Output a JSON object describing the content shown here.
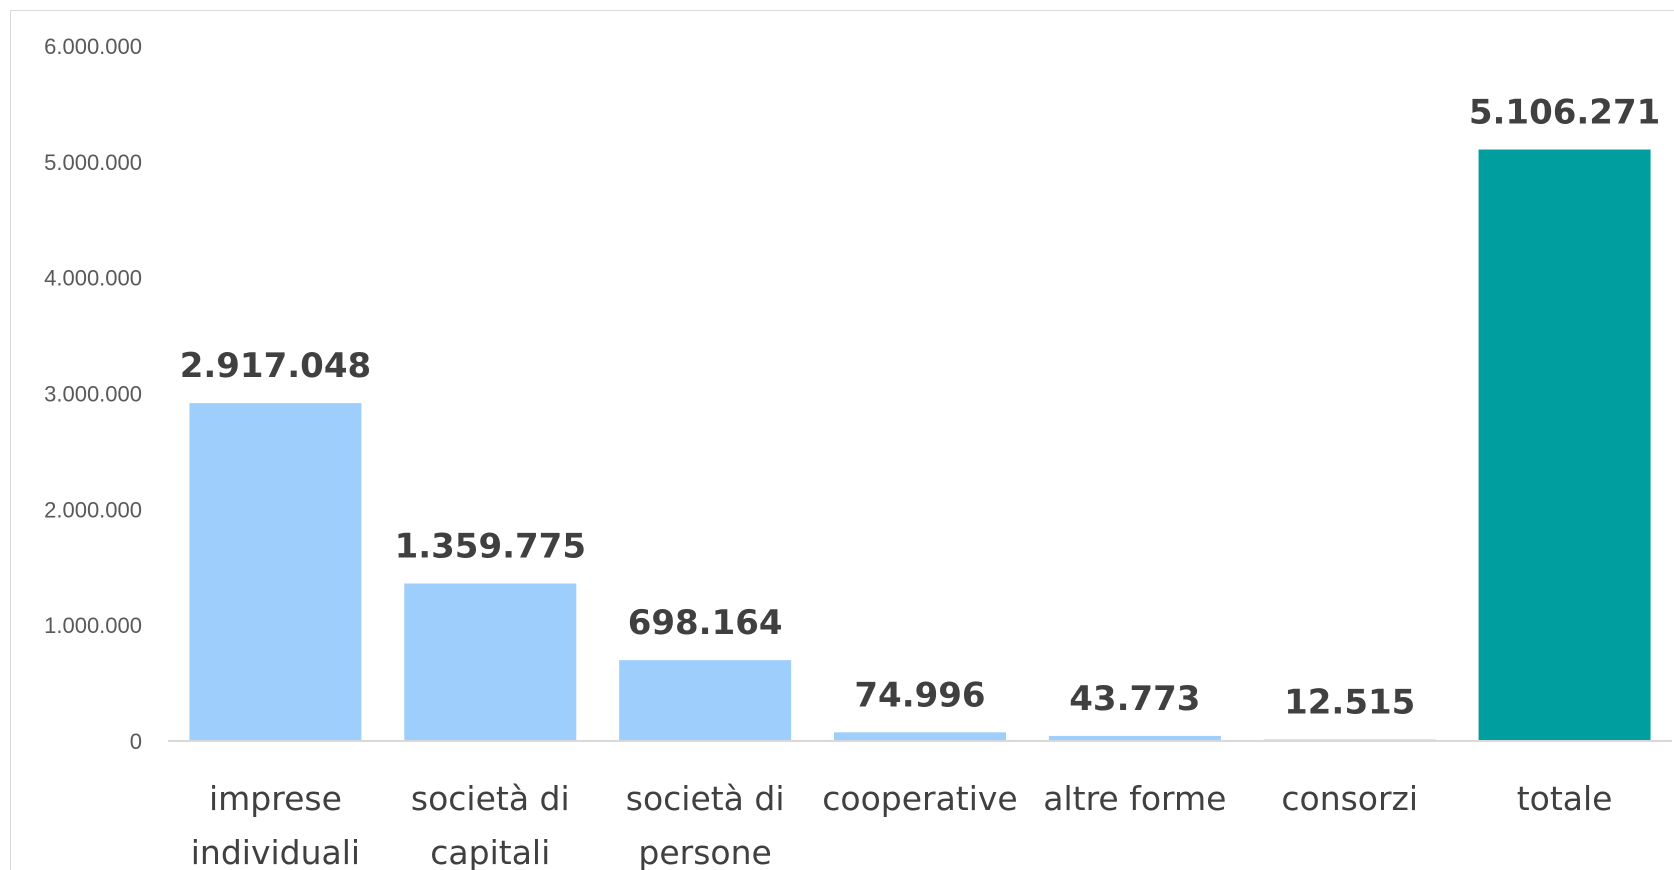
{
  "chart_data": {
    "type": "bar",
    "categories": [
      [
        "imprese",
        "individuali"
      ],
      [
        "società di",
        "capitali"
      ],
      [
        "società di",
        "persone"
      ],
      [
        "cooperative"
      ],
      [
        "altre forme"
      ],
      [
        "consorzi"
      ],
      [
        "totale"
      ]
    ],
    "values": [
      2917048,
      1359775,
      698164,
      74996,
      43773,
      12515,
      5106271
    ],
    "data_labels": [
      "2.917.048",
      "1.359.775",
      "698.164",
      "74.996",
      "43.773",
      "12.515",
      "5.106.271"
    ],
    "ylim": [
      0,
      6000000
    ],
    "yticks": [
      0,
      1000000,
      2000000,
      3000000,
      4000000,
      5000000,
      6000000
    ],
    "ytick_labels": [
      "0",
      "1.000.000",
      "2.000.000",
      "3.000.000",
      "4.000.000",
      "5.000.000",
      "6.000.000"
    ],
    "grid": false,
    "colors": {
      "bar": "#9ecefc",
      "highlight_bar": "#009e9e",
      "axis": "#d9d9d9"
    },
    "highlight_index": 6,
    "title": "",
    "xlabel": "",
    "ylabel": ""
  }
}
